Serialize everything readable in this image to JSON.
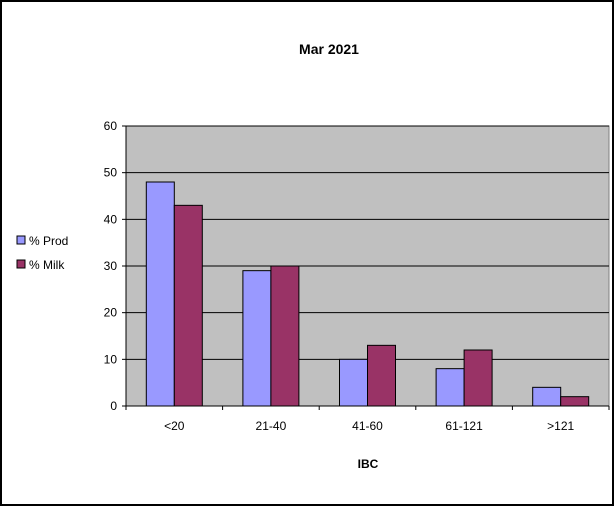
{
  "chart_data": {
    "type": "bar",
    "title": "Mar 2021",
    "xlabel": "IBC",
    "ylabel": "",
    "categories": [
      "<20",
      "21-40",
      "41-60",
      "61-121",
      ">121"
    ],
    "series": [
      {
        "name": "% Prod",
        "values": [
          48,
          29,
          10,
          8,
          4
        ],
        "color": "#9999ff"
      },
      {
        "name": "% Milk",
        "values": [
          43,
          30,
          13,
          12,
          2
        ],
        "color": "#993366"
      }
    ],
    "ylim": [
      0,
      60
    ],
    "yticks": [
      0,
      10,
      20,
      30,
      40,
      50,
      60
    ],
    "grid": true,
    "plot_background": "#c0c0c0",
    "legend_position": "left"
  }
}
